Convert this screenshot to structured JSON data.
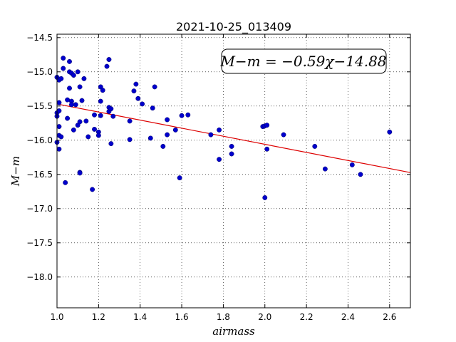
{
  "chart_data": {
    "type": "scatter",
    "title": "2021-10-25_013409",
    "xlabel": "airmass",
    "ylabel": "M−m",
    "xlim": [
      1.0,
      2.7
    ],
    "ylim": [
      -18.45,
      -14.45
    ],
    "y_inverted": true,
    "x_ticks": [
      1.0,
      1.2,
      1.4,
      1.6,
      1.8,
      2.0,
      2.2,
      2.4,
      2.6
    ],
    "x_tick_labels": [
      "1.0",
      "1.2",
      "1.4",
      "1.6",
      "1.8",
      "2.0",
      "2.2",
      "2.4",
      "2.6"
    ],
    "y_ticks": [
      -14.5,
      -15.0,
      -15.5,
      -16.0,
      -16.5,
      -17.0,
      -17.5,
      -18.0
    ],
    "y_tick_labels": [
      "−14.5",
      "−15.0",
      "−15.5",
      "−16.0",
      "−16.5",
      "−17.0",
      "−17.5",
      "−18.0"
    ],
    "grid": true,
    "fit_label": "M−m = −0.59χ−14.88",
    "fit": {
      "slope": -0.59,
      "intercept": -14.88
    },
    "colors": {
      "points": "#0000cc",
      "fit_line": "#dd0000"
    },
    "points": [
      [
        1.0,
        -15.08
      ],
      [
        1.0,
        -15.6
      ],
      [
        1.0,
        -15.65
      ],
      [
        1.0,
        -16.03
      ],
      [
        1.01,
        -15.12
      ],
      [
        1.01,
        -15.45
      ],
      [
        1.01,
        -15.57
      ],
      [
        1.01,
        -15.8
      ],
      [
        1.01,
        -15.93
      ],
      [
        1.02,
        -15.1
      ],
      [
        1.02,
        -15.95
      ],
      [
        1.01,
        -16.13
      ],
      [
        1.03,
        -14.95
      ],
      [
        1.03,
        -14.8
      ],
      [
        1.04,
        -16.62
      ],
      [
        1.05,
        -15.41
      ],
      [
        1.05,
        -15.68
      ],
      [
        1.06,
        -14.85
      ],
      [
        1.06,
        -15.0
      ],
      [
        1.06,
        -15.24
      ],
      [
        1.07,
        -15.02
      ],
      [
        1.07,
        -15.43
      ],
      [
        1.07,
        -15.48
      ],
      [
        1.08,
        -15.05
      ],
      [
        1.08,
        -15.85
      ],
      [
        1.09,
        -15.48
      ],
      [
        1.1,
        -15.0
      ],
      [
        1.1,
        -15.78
      ],
      [
        1.11,
        -15.22
      ],
      [
        1.11,
        -15.73
      ],
      [
        1.11,
        -16.47
      ],
      [
        1.11,
        -16.48
      ],
      [
        1.12,
        -15.42
      ],
      [
        1.13,
        -15.1
      ],
      [
        1.14,
        -15.72
      ],
      [
        1.15,
        -15.95
      ],
      [
        1.17,
        -16.72
      ],
      [
        1.18,
        -15.63
      ],
      [
        1.18,
        -15.84
      ],
      [
        1.2,
        -15.88
      ],
      [
        1.2,
        -15.93
      ],
      [
        1.21,
        -15.64
      ],
      [
        1.21,
        -15.22
      ],
      [
        1.21,
        -15.43
      ],
      [
        1.22,
        -15.27
      ],
      [
        1.24,
        -14.92
      ],
      [
        1.25,
        -14.82
      ],
      [
        1.25,
        -15.52
      ],
      [
        1.25,
        -15.58
      ],
      [
        1.26,
        -15.54
      ],
      [
        1.26,
        -16.05
      ],
      [
        1.27,
        -15.65
      ],
      [
        1.35,
        -15.72
      ],
      [
        1.35,
        -15.99
      ],
      [
        1.37,
        -15.28
      ],
      [
        1.38,
        -15.18
      ],
      [
        1.39,
        -15.39
      ],
      [
        1.41,
        -15.47
      ],
      [
        1.45,
        -15.97
      ],
      [
        1.46,
        -15.53
      ],
      [
        1.47,
        -15.22
      ],
      [
        1.51,
        -16.09
      ],
      [
        1.53,
        -15.92
      ],
      [
        1.53,
        -15.7
      ],
      [
        1.57,
        -15.85
      ],
      [
        1.59,
        -16.55
      ],
      [
        1.6,
        -15.64
      ],
      [
        1.63,
        -15.63
      ],
      [
        1.74,
        -15.92
      ],
      [
        1.78,
        -15.85
      ],
      [
        1.78,
        -16.28
      ],
      [
        1.84,
        -16.2
      ],
      [
        1.84,
        -16.09
      ],
      [
        1.99,
        -15.8
      ],
      [
        2.0,
        -15.79
      ],
      [
        2.0,
        -16.84
      ],
      [
        2.01,
        -15.78
      ],
      [
        2.01,
        -16.13
      ],
      [
        2.09,
        -15.92
      ],
      [
        2.24,
        -16.09
      ],
      [
        2.29,
        -16.42
      ],
      [
        2.42,
        -16.36
      ],
      [
        2.46,
        -16.5
      ],
      [
        2.6,
        -15.88
      ]
    ]
  }
}
